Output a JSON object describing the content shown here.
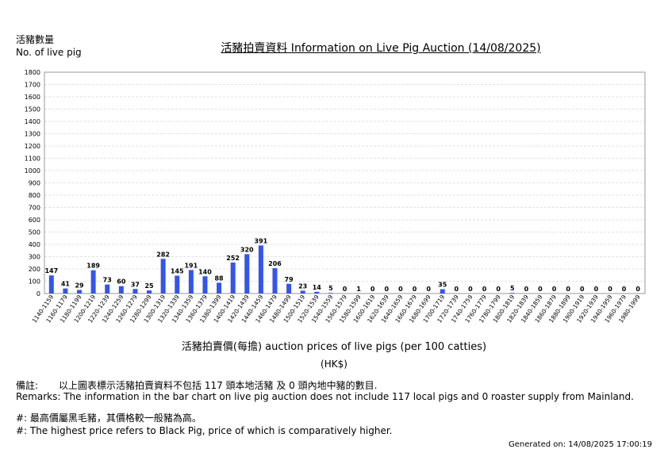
{
  "header": {
    "ylabel_zh": "活豬數量",
    "ylabel_en": "No. of live pig",
    "title": "活豬拍賣資料 Information on Live Pig Auction (14/08/2025)"
  },
  "axis": {
    "xlabel": "活豬拍賣價(每擔) auction prices of live pigs (per 100 catties)",
    "unit": "(HK$)"
  },
  "remarks": {
    "zh_label": "備註:",
    "zh_text": "以上圖表標示活豬拍賣資料不包括 117 頭本地活豬 及 0 頭內地中豬的數目.",
    "en_text": "Remarks: The information in the bar chart on live pig auction does not include 117 local pigs and 0 roaster supply from Mainland.",
    "note_zh": "#: 最高價屬黑毛豬，其價格較一般豬為高。",
    "note_en": "#: The highest price refers to Black Pig, price of which is comparatively higher."
  },
  "footer": {
    "generated": "Generated on: 14/08/2025 17:00:19"
  },
  "colors": {
    "bar": "#3355ee",
    "grid": "#e2e2e2",
    "border": "#999999"
  },
  "chart_data": {
    "type": "bar",
    "xlabel": "活豬拍賣價(每擔) auction prices of live pigs (per 100 catties)",
    "ylabel": "No. of live pig",
    "ylim": [
      0,
      1800
    ],
    "yticks": [
      0,
      100,
      200,
      300,
      400,
      500,
      600,
      700,
      800,
      900,
      1000,
      1100,
      1200,
      1300,
      1400,
      1500,
      1600,
      1700,
      1800
    ],
    "grid": true,
    "categories": [
      "1140-1159",
      "1160-1179",
      "1180-1199",
      "1200-1219",
      "1220-1239",
      "1240-1259",
      "1260-1279",
      "1280-1299",
      "1300-1319",
      "1320-1339",
      "1340-1359",
      "1360-1379",
      "1380-1399",
      "1400-1419",
      "1420-1439",
      "1440-1459",
      "1460-1479",
      "1480-1499",
      "1500-1519",
      "1520-1539",
      "1540-1559",
      "1560-1579",
      "1580-1599",
      "1600-1619",
      "1620-1639",
      "1640-1659",
      "1660-1679",
      "1680-1699",
      "1700-1719",
      "1720-1739",
      "1740-1759",
      "1760-1779",
      "1780-1799",
      "1800-1819",
      "1820-1839",
      "1840-1859",
      "1860-1879",
      "1880-1899",
      "1900-1919",
      "1920-1939",
      "1940-1959",
      "1960-1979",
      "1980-1999"
    ],
    "values": [
      147,
      41,
      29,
      189,
      73,
      60,
      37,
      25,
      282,
      145,
      191,
      140,
      88,
      252,
      320,
      391,
      206,
      79,
      23,
      14,
      5,
      0,
      1,
      0,
      0,
      0,
      0,
      0,
      35,
      0,
      0,
      0,
      0,
      5,
      0,
      0,
      0,
      0,
      0,
      0,
      0,
      0,
      0
    ]
  }
}
